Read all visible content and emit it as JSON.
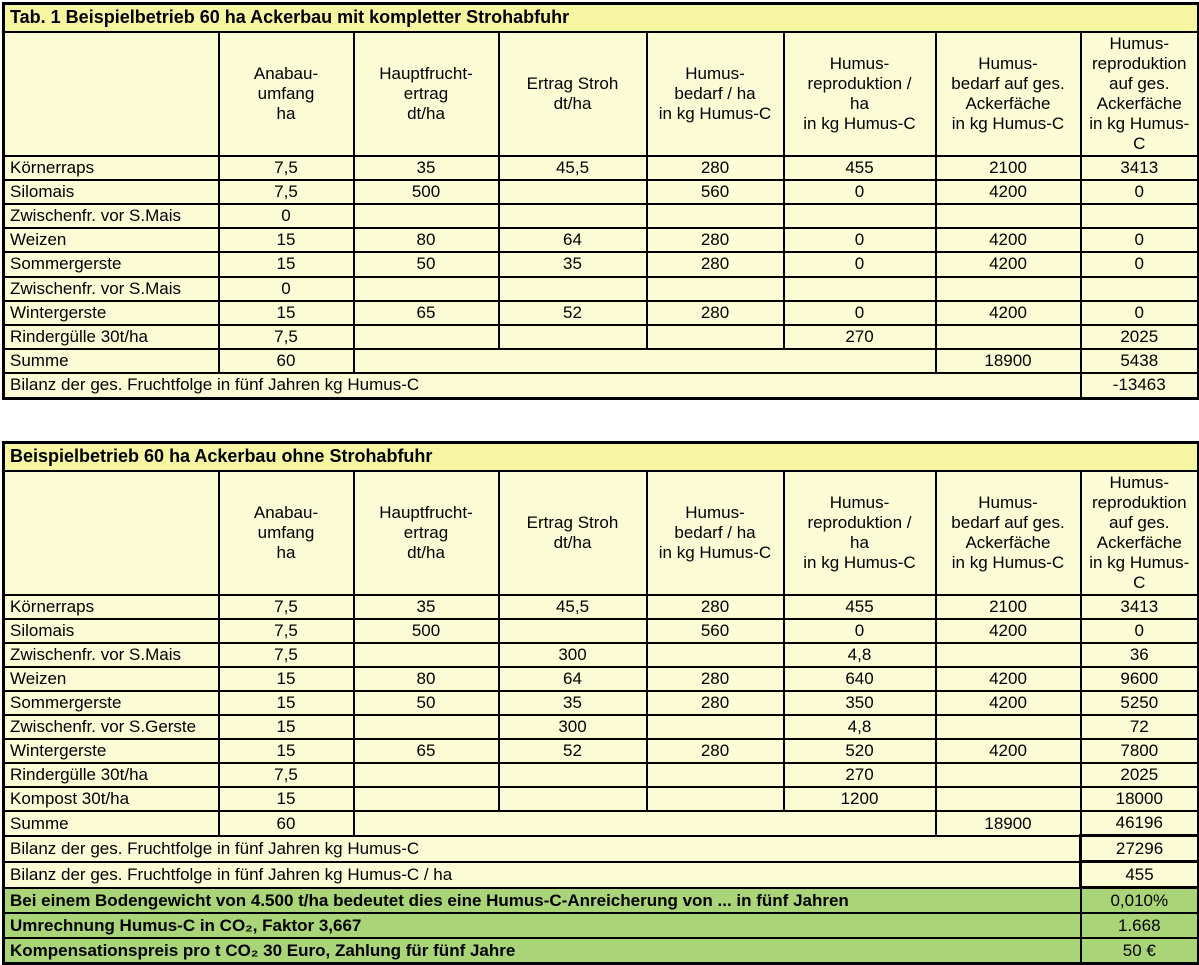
{
  "colors": {
    "body_background": "#fbfbd6",
    "title_background": "#f5f5a2",
    "green_background": "#a9d478",
    "border": "#000000"
  },
  "tables": [
    {
      "title": "Tab. 1 Beispielbetrieb 60 ha Ackerbau mit kompletter Strohabfuhr",
      "headers": [
        "",
        "Anabau-\numfang\nha",
        "Hauptfrucht-\nertrag\ndt/ha",
        "Ertrag Stroh\ndt/ha",
        "Humus-\nbedarf / ha\nin kg Humus-C",
        "Humus-\nreproduktion /\nha\nin kg Humus-C",
        "Humus-\nbedarf auf ges.\nAckerfäche\nin kg Humus-C",
        "Humus-\nreproduktion\nauf ges.\nAckerfäche\nin kg Humus-C"
      ],
      "rows": [
        {
          "type": "data",
          "label": "Körnerraps",
          "values": [
            "7,5",
            "35",
            "45,5",
            "280",
            "455",
            "2100",
            "3413"
          ]
        },
        {
          "type": "data",
          "label": "Silomais",
          "values": [
            "7,5",
            "500",
            "",
            "560",
            "0",
            "4200",
            "0"
          ]
        },
        {
          "type": "data",
          "label": "Zwischenfr. vor S.Mais",
          "values": [
            "0",
            "",
            "",
            "",
            "",
            "",
            ""
          ]
        },
        {
          "type": "data",
          "label": "Weizen",
          "values": [
            "15",
            "80",
            "64",
            "280",
            "0",
            "4200",
            "0"
          ]
        },
        {
          "type": "data",
          "label": "Sommergerste",
          "values": [
            "15",
            "50",
            "35",
            "280",
            "0",
            "4200",
            "0"
          ]
        },
        {
          "type": "data",
          "label": "Zwischenfr. vor S.Mais",
          "values": [
            "0",
            "",
            "",
            "",
            "",
            "",
            ""
          ]
        },
        {
          "type": "data",
          "label": "Wintergerste",
          "values": [
            "15",
            "65",
            "52",
            "280",
            "0",
            "4200",
            "0"
          ]
        },
        {
          "type": "data",
          "label": "Rindergülle 30t/ha",
          "values": [
            "7,5",
            "",
            "",
            "",
            "270",
            "",
            "2025"
          ]
        },
        {
          "type": "summe",
          "label": "Summe",
          "area": "60",
          "merged": "",
          "total_bedarf": "18900",
          "total_repro": "5438"
        },
        {
          "type": "wide",
          "label": "Bilanz der ges. Fruchtfolge in fünf Jahren kg Humus-C",
          "value": "-13463",
          "green": false,
          "boxed": false
        }
      ]
    },
    {
      "title": "Beispielbetrieb 60 ha Ackerbau ohne Strohabfuhr",
      "headers": [
        "",
        "Anabau-\numfang\nha",
        "Hauptfrucht-\nertrag\ndt/ha",
        "Ertrag Stroh\ndt/ha",
        "Humus-\nbedarf / ha\nin kg Humus-C",
        "Humus-\nreproduktion /\nha\nin kg Humus-C",
        "Humus-\nbedarf auf ges.\nAckerfäche\nin kg Humus-C",
        "Humus-\nreproduktion\nauf ges.\nAckerfäche\nin kg Humus-C"
      ],
      "rows": [
        {
          "type": "data",
          "label": "Körnerraps",
          "values": [
            "7,5",
            "35",
            "45,5",
            "280",
            "455",
            "2100",
            "3413"
          ]
        },
        {
          "type": "data",
          "label": "Silomais",
          "values": [
            "7,5",
            "500",
            "",
            "560",
            "0",
            "4200",
            "0"
          ]
        },
        {
          "type": "data",
          "label": "Zwischenfr. vor S.Mais",
          "values": [
            "7,5",
            "",
            "300",
            "",
            "4,8",
            "",
            "36"
          ]
        },
        {
          "type": "data",
          "label": "Weizen",
          "values": [
            "15",
            "80",
            "64",
            "280",
            "640",
            "4200",
            "9600"
          ]
        },
        {
          "type": "data",
          "label": "Sommergerste",
          "values": [
            "15",
            "50",
            "35",
            "280",
            "350",
            "4200",
            "5250"
          ]
        },
        {
          "type": "data",
          "label": "Zwischenfr. vor S.Gerste",
          "values": [
            "15",
            "",
            "300",
            "",
            "4,8",
            "",
            "72"
          ]
        },
        {
          "type": "data",
          "label": "Wintergerste",
          "values": [
            "15",
            "65",
            "52",
            "280",
            "520",
            "4200",
            "7800"
          ]
        },
        {
          "type": "data",
          "label": "Rindergülle 30t/ha",
          "values": [
            "7,5",
            "",
            "",
            "",
            "270",
            "",
            "2025"
          ]
        },
        {
          "type": "data",
          "label": "Kompost 30t/ha",
          "values": [
            "15",
            "",
            "",
            "",
            "1200",
            "",
            "18000"
          ]
        },
        {
          "type": "summe",
          "label": "Summe",
          "area": "60",
          "merged": "",
          "total_bedarf": "18900",
          "total_repro": "46196"
        },
        {
          "type": "wide",
          "label": "Bilanz der ges. Fruchtfolge in fünf Jahren kg Humus-C",
          "value": "27296",
          "green": false,
          "boxed": true
        },
        {
          "type": "wide",
          "label": "Bilanz der ges. Fruchtfolge in fünf Jahren kg Humus-C / ha",
          "value": "455",
          "green": false,
          "boxed": true
        },
        {
          "type": "wide",
          "label": "Bei einem Bodengewicht von 4.500 t/ha bedeutet dies eine Humus-C-Anreicherung von ... in fünf Jahren",
          "value": "0,010%",
          "green": true,
          "boxed": false
        },
        {
          "type": "wide",
          "label": "Umrechnung Humus-C in CO₂, Faktor 3,667",
          "value": "1.668",
          "green": true,
          "boxed": false
        },
        {
          "type": "wide",
          "label": "Kompensationspreis pro t CO₂ 30 Euro, Zahlung für fünf Jahre",
          "value": "50 €",
          "green": true,
          "boxed": false
        }
      ]
    }
  ]
}
